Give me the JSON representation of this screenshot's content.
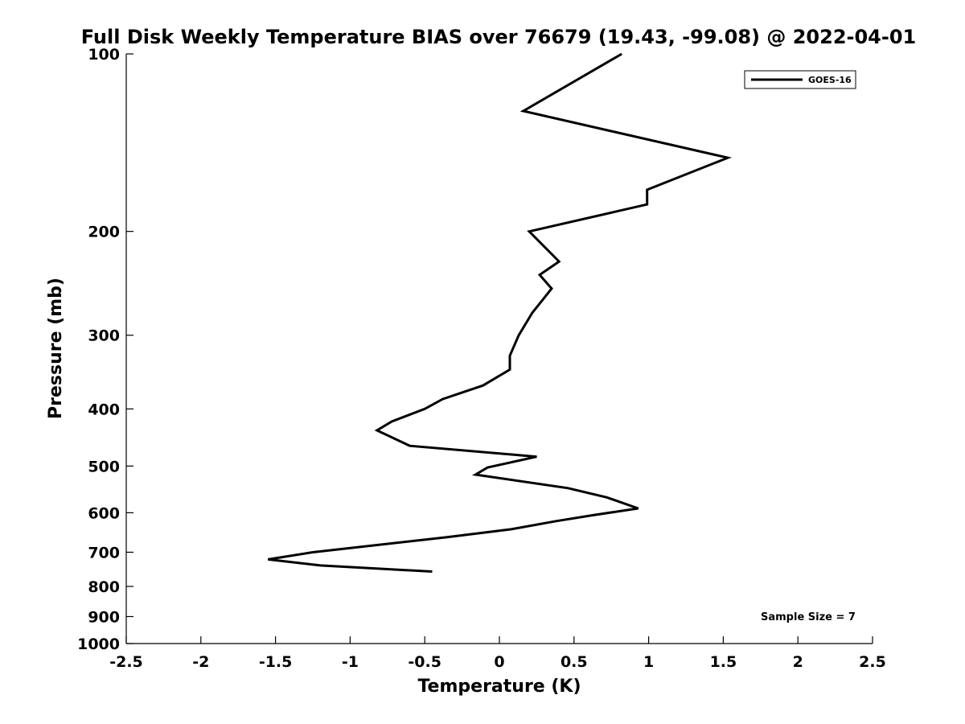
{
  "chart_data": {
    "type": "line",
    "title": "Full Disk Weekly Temperature BIAS over 76679 (19.43, -99.08) @ 2022-04-01",
    "xlabel": "Temperature (K)",
    "ylabel": "Pressure (mb)",
    "xlim": [
      -2.5,
      2.5
    ],
    "ylim": [
      1000,
      100
    ],
    "yscale": "log",
    "reversed_y": true,
    "xticks": [
      -2.5,
      -2,
      -1.5,
      -1,
      -0.5,
      0,
      0.5,
      1,
      1.5,
      2,
      2.5
    ],
    "xtick_labels": [
      "-2.5",
      "-2",
      "-1.5",
      "-1",
      "-0.5",
      "0",
      "0.5",
      "1",
      "1.5",
      "2",
      "2.5"
    ],
    "yticks": [
      100,
      200,
      300,
      400,
      500,
      600,
      700,
      800,
      900,
      1000
    ],
    "ytick_labels": [
      "100",
      "200",
      "300",
      "400",
      "500",
      "600",
      "700",
      "800",
      "900",
      "1000"
    ],
    "grid": false,
    "legend": {
      "position": "top-right",
      "entries": [
        "GOES-16"
      ]
    },
    "annotation": "Sample Size = 7",
    "series": [
      {
        "name": "GOES-16",
        "color": "#000000",
        "points": [
          {
            "p": 100,
            "t": 0.82
          },
          {
            "p": 125,
            "t": 0.16
          },
          {
            "p": 150,
            "t": 1.53
          },
          {
            "p": 170,
            "t": 0.99
          },
          {
            "p": 180,
            "t": 0.99
          },
          {
            "p": 200,
            "t": 0.2
          },
          {
            "p": 225,
            "t": 0.4
          },
          {
            "p": 237,
            "t": 0.27
          },
          {
            "p": 250,
            "t": 0.35
          },
          {
            "p": 275,
            "t": 0.22
          },
          {
            "p": 300,
            "t": 0.13
          },
          {
            "p": 325,
            "t": 0.07
          },
          {
            "p": 343,
            "t": 0.07
          },
          {
            "p": 365,
            "t": -0.11
          },
          {
            "p": 385,
            "t": -0.38
          },
          {
            "p": 400,
            "t": -0.5
          },
          {
            "p": 420,
            "t": -0.72
          },
          {
            "p": 435,
            "t": -0.82
          },
          {
            "p": 462,
            "t": -0.6
          },
          {
            "p": 482,
            "t": 0.25
          },
          {
            "p": 503,
            "t": -0.08
          },
          {
            "p": 517,
            "t": -0.16
          },
          {
            "p": 545,
            "t": 0.46
          },
          {
            "p": 565,
            "t": 0.72
          },
          {
            "p": 590,
            "t": 0.93
          },
          {
            "p": 606,
            "t": 0.62
          },
          {
            "p": 620,
            "t": 0.38
          },
          {
            "p": 640,
            "t": 0.08
          },
          {
            "p": 660,
            "t": -0.35
          },
          {
            "p": 700,
            "t": -1.25
          },
          {
            "p": 720,
            "t": -1.55
          },
          {
            "p": 737,
            "t": -1.2
          },
          {
            "p": 755,
            "t": -0.45
          }
        ]
      }
    ]
  }
}
